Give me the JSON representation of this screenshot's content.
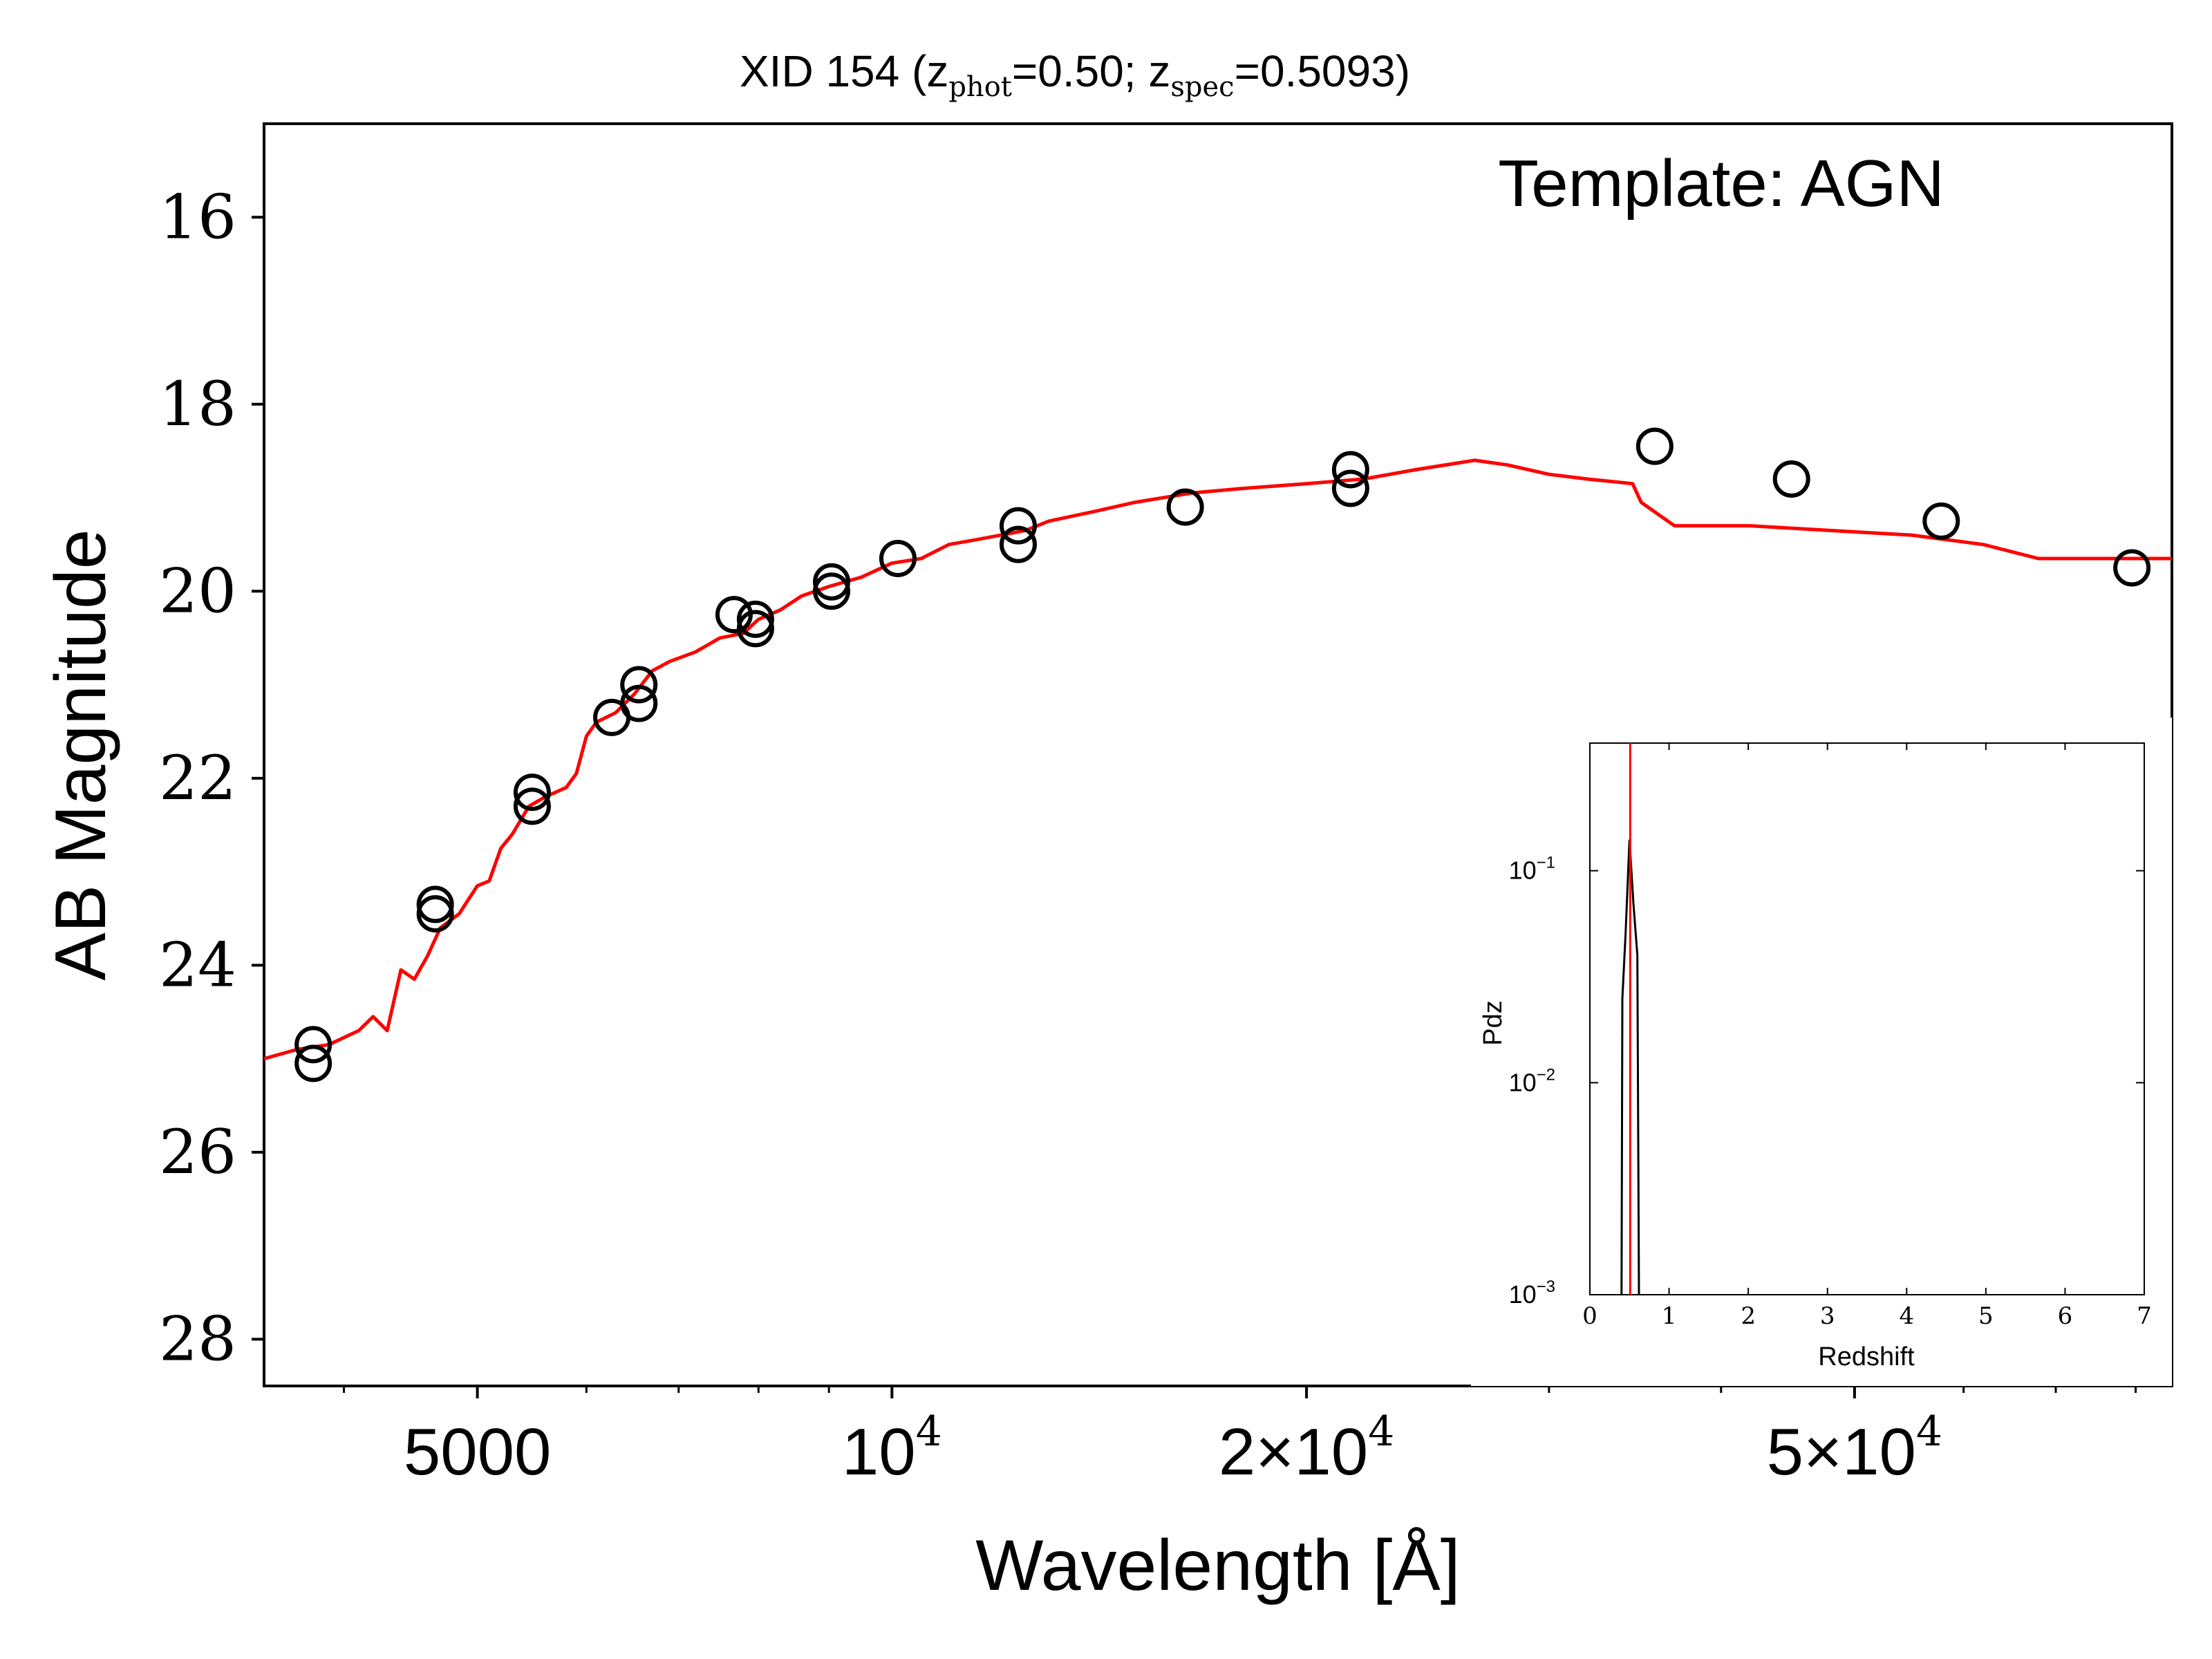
{
  "chart_data": [
    {
      "type": "scatter",
      "title": {
        "prefix": "XID 154 (z",
        "sub1": "phot",
        "mid": "=0.50; z",
        "sub2": "spec",
        "suffix": "=0.5093)"
      },
      "annotation": "Template: AGN",
      "xlabel": "Wavelength [Å]",
      "ylabel": "AB Magnitude",
      "xscale": "log",
      "xlim": [
        3500,
        85000
      ],
      "ylim": [
        28.5,
        15
      ],
      "y_inverted": true,
      "yticks": [
        {
          "value": 16,
          "label": "16"
        },
        {
          "value": 18,
          "label": "18"
        },
        {
          "value": 20,
          "label": "20"
        },
        {
          "value": 22,
          "label": "22"
        },
        {
          "value": 24,
          "label": "24"
        },
        {
          "value": 26,
          "label": "26"
        },
        {
          "value": 28,
          "label": "28"
        }
      ],
      "xticks": [
        {
          "value": 5000,
          "label": "5000"
        },
        {
          "value": 10000,
          "label": "10",
          "sup": "4"
        },
        {
          "value": 20000,
          "label": "2×10",
          "sup": "4"
        },
        {
          "value": 50000,
          "label": "5×10",
          "sup": "4"
        }
      ],
      "x_minor_ticks": [
        4000,
        6000,
        7000,
        8000,
        9000,
        30000,
        40000,
        60000,
        70000,
        80000
      ],
      "colors": {
        "template": "#ff0000",
        "points": "#000000"
      },
      "series": [
        {
          "kind": "photometry-points",
          "points": [
            [
              3800,
              24.85
            ],
            [
              3800,
              25.05
            ],
            [
              4660,
              23.35
            ],
            [
              4660,
              23.45
            ],
            [
              5480,
              22.15
            ],
            [
              5480,
              22.3
            ],
            [
              6260,
              21.35
            ],
            [
              6550,
              21.0
            ],
            [
              6550,
              21.2
            ],
            [
              7680,
              20.25
            ],
            [
              7960,
              20.3
            ],
            [
              7960,
              20.4
            ],
            [
              9040,
              19.9
            ],
            [
              9040,
              20.0
            ],
            [
              10100,
              19.65
            ],
            [
              12350,
              19.3
            ],
            [
              12350,
              19.5
            ],
            [
              16330,
              19.1
            ],
            [
              21530,
              18.7
            ],
            [
              21530,
              18.9
            ],
            [
              35800,
              18.45
            ],
            [
              45000,
              18.8
            ],
            [
              57800,
              19.25
            ],
            [
              79500,
              19.75
            ]
          ]
        },
        {
          "kind": "template-sed",
          "points": [
            [
              3500,
              25.0
            ],
            [
              3700,
              24.9
            ],
            [
              3900,
              24.85
            ],
            [
              4100,
              24.7
            ],
            [
              4200,
              24.55
            ],
            [
              4300,
              24.7
            ],
            [
              4400,
              24.05
            ],
            [
              4500,
              24.15
            ],
            [
              4600,
              23.9
            ],
            [
              4700,
              23.6
            ],
            [
              4850,
              23.45
            ],
            [
              5000,
              23.15
            ],
            [
              5100,
              23.1
            ],
            [
              5200,
              22.75
            ],
            [
              5300,
              22.6
            ],
            [
              5450,
              22.3
            ],
            [
              5600,
              22.2
            ],
            [
              5800,
              22.1
            ],
            [
              5900,
              21.95
            ],
            [
              6000,
              21.55
            ],
            [
              6100,
              21.4
            ],
            [
              6300,
              21.3
            ],
            [
              6500,
              21.1
            ],
            [
              6700,
              20.85
            ],
            [
              6900,
              20.75
            ],
            [
              7200,
              20.65
            ],
            [
              7500,
              20.5
            ],
            [
              7800,
              20.45
            ],
            [
              8000,
              20.3
            ],
            [
              8300,
              20.2
            ],
            [
              8600,
              20.05
            ],
            [
              9000,
              19.95
            ],
            [
              9500,
              19.85
            ],
            [
              10000,
              19.7
            ],
            [
              10500,
              19.65
            ],
            [
              11000,
              19.5
            ],
            [
              11500,
              19.45
            ],
            [
              12000,
              19.4
            ],
            [
              12500,
              19.35
            ],
            [
              13000,
              19.25
            ],
            [
              14000,
              19.15
            ],
            [
              15000,
              19.05
            ],
            [
              16500,
              18.95
            ],
            [
              18000,
              18.9
            ],
            [
              20000,
              18.85
            ],
            [
              22000,
              18.8
            ],
            [
              24000,
              18.7
            ],
            [
              26500,
              18.6
            ],
            [
              28000,
              18.65
            ],
            [
              30000,
              18.75
            ],
            [
              32000,
              18.8
            ],
            [
              34500,
              18.85
            ],
            [
              35000,
              19.05
            ],
            [
              37000,
              19.3
            ],
            [
              38000,
              19.3
            ],
            [
              42000,
              19.3
            ],
            [
              48000,
              19.35
            ],
            [
              55000,
              19.4
            ],
            [
              62000,
              19.5
            ],
            [
              68000,
              19.65
            ],
            [
              72000,
              19.65
            ],
            [
              80000,
              19.65
            ],
            [
              85000,
              19.65
            ]
          ]
        }
      ]
    },
    {
      "type": "line",
      "xlabel": "Redshift",
      "ylabel": "Pdz",
      "yscale": "log",
      "xlim": [
        0,
        7
      ],
      "ylim": [
        0.001,
        0.4
      ],
      "xticks": [
        "0",
        "1",
        "2",
        "3",
        "4",
        "5",
        "6",
        "7"
      ],
      "yticks": [
        {
          "value": 0.1,
          "label": "10",
          "sup": "−1"
        },
        {
          "value": 0.01,
          "label": "10",
          "sup": "−2"
        },
        {
          "value": 0.001,
          "label": "10",
          "sup": "−3"
        }
      ],
      "colors": {
        "pdz": "#000000",
        "zspec_line": "#ff0000"
      },
      "zspec_line": 0.5093,
      "series": [
        {
          "kind": "pdz",
          "points": [
            [
              0.4,
              0.001
            ],
            [
              0.41,
              0.025
            ],
            [
              0.45,
              0.05
            ],
            [
              0.5,
              0.14
            ],
            [
              0.55,
              0.07
            ],
            [
              0.6,
              0.04
            ],
            [
              0.62,
              0.001
            ]
          ]
        }
      ]
    }
  ]
}
